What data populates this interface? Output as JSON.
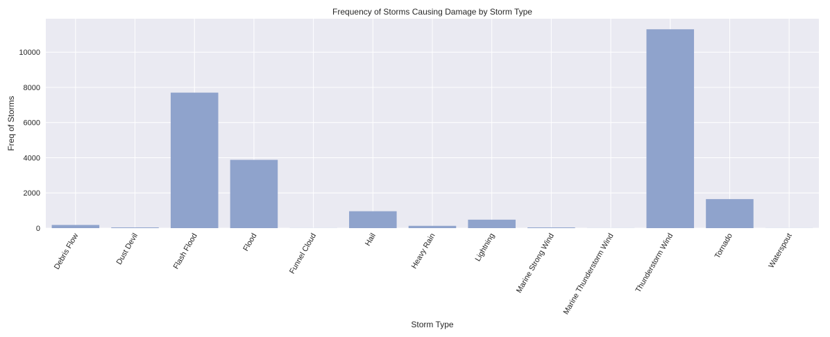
{
  "chart_data": {
    "type": "bar",
    "title": "Frequency of Storms Causing Damage by Storm Type",
    "xlabel": "Storm Type",
    "ylabel": "Freq of Storms",
    "categories": [
      "Debris Flow",
      "Dust Devil",
      "Flash Flood",
      "Flood",
      "Funnel Cloud",
      "Hail",
      "Heavy Rain",
      "Lightning",
      "Marine Strong Wind",
      "Marine Thunderstorm Wind",
      "Thunderstorm Wind",
      "Tornado",
      "Waterspout"
    ],
    "values": [
      180,
      40,
      7700,
      3880,
      5,
      960,
      130,
      480,
      40,
      5,
      11300,
      1650,
      5
    ],
    "ylim": [
      0,
      11900
    ],
    "yticks": [
      0,
      2000,
      4000,
      6000,
      8000,
      10000
    ],
    "grid": true,
    "colors": {
      "bar": "#8fa3cc",
      "background": "#eaeaf2",
      "grid": "#ffffff",
      "text": "#262626"
    }
  }
}
